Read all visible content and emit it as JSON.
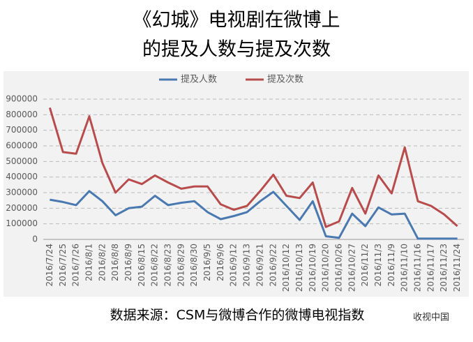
{
  "chart_data": {
    "type": "line",
    "title": [
      "《幻城》电视剧在微博上",
      "的提及人数与提及次数"
    ],
    "source": "数据来源：CSM与微博合作的微博电视指数",
    "watermark": "收视中国",
    "categories": [
      "2016/7/24",
      "2016/7/25",
      "2016/7/26",
      "2016/8/1",
      "2016/8/2",
      "2016/8/8",
      "2016/8/9",
      "2016/8/15",
      "2016/8/22",
      "2016/8/23",
      "2016/8/29",
      "2016/8/30",
      "2016/9/5",
      "2016/9/6",
      "2016/9/12",
      "2016/9/13",
      "2016/9/21",
      "2016/9/22",
      "2016/10/12",
      "2016/10/13",
      "2016/10/19",
      "2016/10/20",
      "2016/10/26",
      "2016/10/27",
      "2016/11/2",
      "2016/11/3",
      "2016/11/9",
      "2016/11/10",
      "2016/11/16",
      "2016/11/17",
      "2016/11/23",
      "2016/11/24"
    ],
    "series": [
      {
        "name": "提及人数",
        "color": "#4a78b0",
        "values": [
          255000,
          240000,
          220000,
          310000,
          245000,
          155000,
          200000,
          210000,
          280000,
          220000,
          235000,
          245000,
          175000,
          130000,
          150000,
          175000,
          245000,
          305000,
          215000,
          125000,
          245000,
          20000,
          10000,
          165000,
          85000,
          205000,
          160000,
          165000,
          5000,
          5000,
          5000,
          5000
        ]
      },
      {
        "name": "提及次数",
        "color": "#b84c4c",
        "values": [
          845000,
          560000,
          550000,
          790000,
          490000,
          300000,
          385000,
          355000,
          410000,
          365000,
          325000,
          340000,
          340000,
          225000,
          190000,
          215000,
          310000,
          415000,
          280000,
          265000,
          365000,
          80000,
          115000,
          330000,
          165000,
          410000,
          295000,
          590000,
          245000,
          215000,
          160000,
          85000
        ]
      }
    ],
    "ylim": [
      0,
      900000
    ],
    "yticks": [
      0,
      100000,
      200000,
      300000,
      400000,
      500000,
      600000,
      700000,
      800000,
      900000
    ],
    "grid": true
  }
}
